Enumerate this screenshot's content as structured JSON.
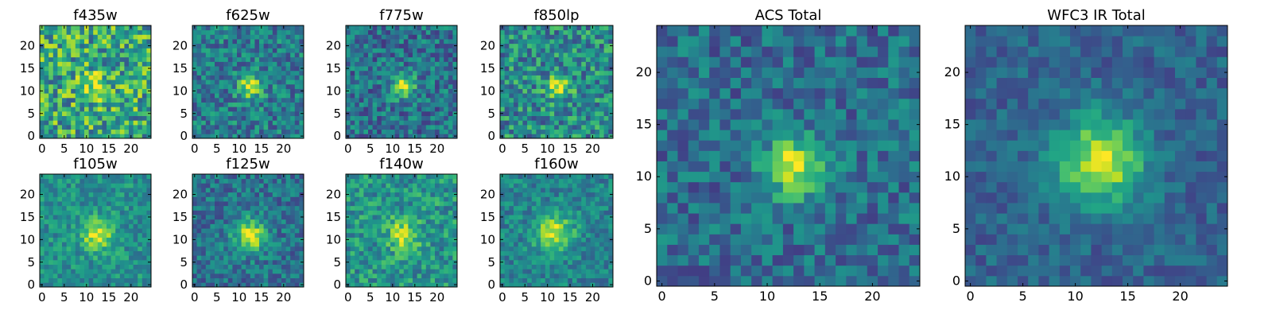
{
  "chart_data": [
    {
      "type": "heatmap",
      "title": "f435w",
      "xticks": [
        "0",
        "5",
        "10",
        "15",
        "20"
      ],
      "yticks": [
        "0",
        "5",
        "10",
        "15",
        "20"
      ],
      "xlim": [
        -0.5,
        24.5
      ],
      "ylim": [
        -0.5,
        24.5
      ],
      "colormap": "viridis",
      "peak": {
        "x": 12,
        "y": 11,
        "amplitude": 0.28,
        "sigma": 2.2
      },
      "noise": 0.32,
      "base": 0.6,
      "seed": 11
    },
    {
      "type": "heatmap",
      "title": "f625w",
      "xticks": [
        "0",
        "5",
        "10",
        "15",
        "20"
      ],
      "yticks": [
        "0",
        "5",
        "10",
        "15",
        "20"
      ],
      "xlim": [
        -0.5,
        24.5
      ],
      "ylim": [
        -0.5,
        24.5
      ],
      "colormap": "viridis",
      "peak": {
        "x": 12.5,
        "y": 11,
        "amplitude": 0.55,
        "sigma": 1.8
      },
      "noise": 0.22,
      "base": 0.42,
      "seed": 23
    },
    {
      "type": "heatmap",
      "title": "f775w",
      "xticks": [
        "0",
        "5",
        "10",
        "15",
        "20"
      ],
      "yticks": [
        "0",
        "5",
        "10",
        "15",
        "20"
      ],
      "xlim": [
        -0.5,
        24.5
      ],
      "ylim": [
        -0.5,
        24.5
      ],
      "colormap": "viridis",
      "peak": {
        "x": 12.5,
        "y": 11,
        "amplitude": 0.55,
        "sigma": 1.8
      },
      "noise": 0.22,
      "base": 0.38,
      "seed": 37
    },
    {
      "type": "heatmap",
      "title": "f850lp",
      "xticks": [
        "0",
        "5",
        "10",
        "15",
        "20"
      ],
      "yticks": [
        "0",
        "5",
        "10",
        "15",
        "20"
      ],
      "xlim": [
        -0.5,
        24.5
      ],
      "ylim": [
        -0.5,
        24.5
      ],
      "colormap": "viridis",
      "peak": {
        "x": 12.5,
        "y": 11,
        "amplitude": 0.45,
        "sigma": 1.8
      },
      "noise": 0.26,
      "base": 0.48,
      "seed": 41
    },
    {
      "type": "heatmap",
      "title": "f105w",
      "xticks": [
        "0",
        "5",
        "10",
        "15",
        "20"
      ],
      "yticks": [
        "0",
        "5",
        "10",
        "15",
        "20"
      ],
      "xlim": [
        -0.5,
        24.5
      ],
      "ylim": [
        -0.5,
        24.5
      ],
      "colormap": "viridis",
      "peak": {
        "x": 12.5,
        "y": 11,
        "amplitude": 0.45,
        "sigma": 2.4
      },
      "noise": 0.16,
      "base": 0.5,
      "seed": 53
    },
    {
      "type": "heatmap",
      "title": "f125w",
      "xticks": [
        "0",
        "5",
        "10",
        "15",
        "20"
      ],
      "yticks": [
        "0",
        "5",
        "10",
        "15",
        "20"
      ],
      "xlim": [
        -0.5,
        24.5
      ],
      "ylim": [
        -0.5,
        24.5
      ],
      "colormap": "viridis",
      "peak": {
        "x": 12.5,
        "y": 11,
        "amplitude": 0.55,
        "sigma": 2.6
      },
      "noise": 0.18,
      "base": 0.38,
      "seed": 67
    },
    {
      "type": "heatmap",
      "title": "f140w",
      "xticks": [
        "0",
        "5",
        "10",
        "15",
        "20"
      ],
      "yticks": [
        "0",
        "5",
        "10",
        "15",
        "20"
      ],
      "xlim": [
        -0.5,
        24.5
      ],
      "ylim": [
        -0.5,
        24.5
      ],
      "colormap": "viridis",
      "peak": {
        "x": 12.5,
        "y": 11,
        "amplitude": 0.4,
        "sigma": 2.4
      },
      "noise": 0.2,
      "base": 0.52,
      "seed": 71
    },
    {
      "type": "heatmap",
      "title": "f160w",
      "xticks": [
        "0",
        "5",
        "10",
        "15",
        "20"
      ],
      "yticks": [
        "0",
        "5",
        "10",
        "15",
        "20"
      ],
      "xlim": [
        -0.5,
        24.5
      ],
      "ylim": [
        -0.5,
        24.5
      ],
      "colormap": "viridis",
      "peak": {
        "x": 11.5,
        "y": 11.5,
        "amplitude": 0.5,
        "sigma": 2.8
      },
      "noise": 0.16,
      "base": 0.45,
      "seed": 83
    },
    {
      "type": "heatmap",
      "title": "ACS Total",
      "xticks": [
        "0",
        "5",
        "10",
        "15",
        "20"
      ],
      "yticks": [
        "0",
        "5",
        "10",
        "15",
        "20"
      ],
      "xlim": [
        -0.5,
        24.5
      ],
      "ylim": [
        -0.5,
        24.5
      ],
      "colormap": "viridis",
      "peak": {
        "x": 12.5,
        "y": 11,
        "amplitude": 0.62,
        "sigma": 1.9
      },
      "noise": 0.18,
      "base": 0.36,
      "seed": 97
    },
    {
      "type": "heatmap",
      "title": "WFC3 IR Total",
      "xticks": [
        "0",
        "5",
        "10",
        "15",
        "20"
      ],
      "yticks": [
        "0",
        "5",
        "10",
        "15",
        "20"
      ],
      "xlim": [
        -0.5,
        24.5
      ],
      "ylim": [
        -0.5,
        24.5
      ],
      "colormap": "viridis",
      "peak": {
        "x": 12.5,
        "y": 11.5,
        "amplitude": 0.62,
        "sigma": 2.9
      },
      "noise": 0.12,
      "base": 0.32,
      "seed": 101
    }
  ]
}
